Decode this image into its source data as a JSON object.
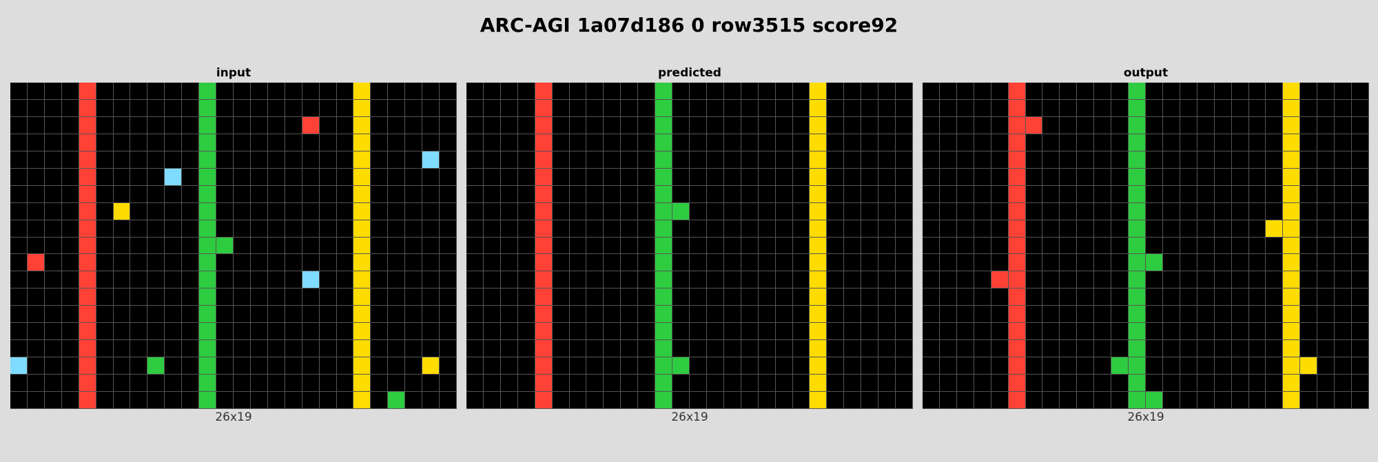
{
  "title": "ARC-AGI 1a07d186 0 row3515 score92",
  "palette": {
    "0": "#000000",
    "1": "#ff4136",
    "2": "#2ecc40",
    "3": "#ffdc00",
    "4": "#7fdbff"
  },
  "panels": [
    {
      "label": "input",
      "caption": "26x19",
      "rows": [
        "00001000000200000000300000",
        "00001000000200000000300000",
        "00001000000200000100300000",
        "00001000000200000000300000",
        "00001000000200000000300040",
        "00001000040200000000300000",
        "00001000000200000000300000",
        "00001030000200000000300000",
        "00001000000200000000300000",
        "00001000000220000000300000",
        "01001000000200000000300000",
        "00001000000200000400300000",
        "00001000000200000000300000",
        "00001000000200000000300000",
        "00001000000200000000300000",
        "00001000000200000000300000",
        "40001000200200000000300030",
        "00001000000200000000300000",
        "00001000000200000000302000"
      ]
    },
    {
      "label": "predicted",
      "caption": "26x19",
      "rows": [
        "00001000000200000000300000",
        "00001000000200000000300000",
        "00001000000200000000300000",
        "00001000000200000000300000",
        "00001000000200000000300000",
        "00001000000200000000300000",
        "00001000000200000000300000",
        "00001000000220000000300000",
        "00001000000200000000300000",
        "00001000000200000000300000",
        "00001000000200000000300000",
        "00001000000200000000300000",
        "00001000000200000000300000",
        "00001000000200000000300000",
        "00001000000200000000300000",
        "00001000000200000000300000",
        "00001000000220000000300000",
        "00001000000200000000300000",
        "00001000000200000000300000"
      ]
    },
    {
      "label": "output",
      "caption": "26x19",
      "rows": [
        "00000100000020000000030000",
        "00000100000020000000030000",
        "00000110000020000000030000",
        "00000100000020000000030000",
        "00000100000020000000030000",
        "00000100000020000000030000",
        "00000100000020000000030000",
        "00000100000020000000030000",
        "00000100000020000000330000",
        "00000100000020000000030000",
        "00000100000022000000030000",
        "00001100000020000000030000",
        "00000100000020000000030000",
        "00000100000020000000030000",
        "00000100000020000000030000",
        "00000100000020000000030000",
        "00000100000220000000033000",
        "00000100000020000000030000",
        "00000100000022000000030000"
      ]
    }
  ]
}
